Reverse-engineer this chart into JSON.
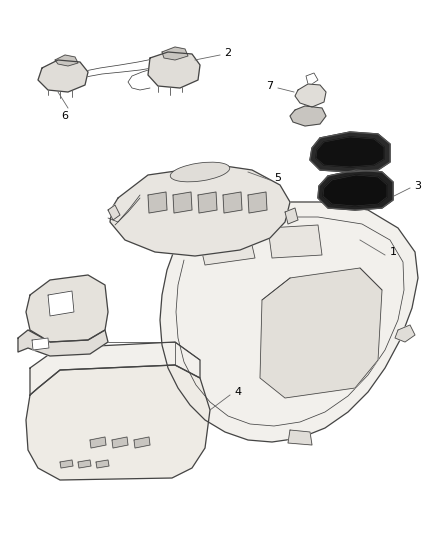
{
  "bg_color": "#ffffff",
  "lc": "#444444",
  "lc2": "#666666",
  "fc_light": "#f2f0ec",
  "fc_mid": "#e0ddd8",
  "fc_dark": "#c8c5c0",
  "fc_black": "#1a1a1a",
  "figsize": [
    4.38,
    5.33
  ],
  "dpi": 100,
  "label_fs": 8,
  "lw_main": 0.9,
  "lw_thin": 0.55
}
